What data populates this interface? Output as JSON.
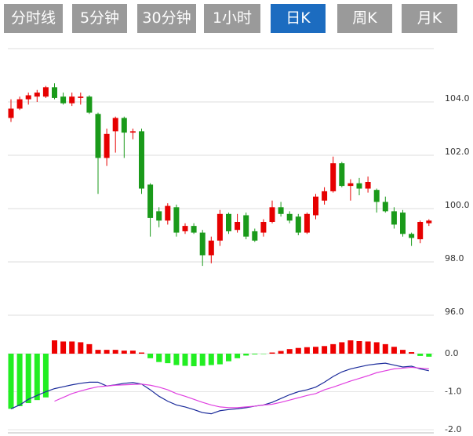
{
  "tabs": [
    "分时线",
    "5分钟",
    "30分钟",
    "1小时",
    "日K",
    "周K",
    "月K"
  ],
  "active_tab": 4,
  "chart_data": [
    {
      "type": "candlestick",
      "up_color": "#e60000",
      "down_color": "#1a9a1a",
      "ylim": [
        96,
        106
      ],
      "yticks": [
        {
          "value": 96,
          "label": "96.0"
        },
        {
          "value": 98,
          "label": "98.0"
        },
        {
          "value": 100,
          "label": "100.0"
        },
        {
          "value": 102,
          "label": "102.0"
        },
        {
          "value": 104,
          "label": "104.0"
        }
      ],
      "open": [
        103.4,
        103.75,
        104.1,
        104.2,
        104.2,
        104.55,
        104.2,
        103.95,
        104.15,
        104.2,
        103.55,
        101.9,
        102.9,
        103.4,
        102.85,
        102.9,
        100.9,
        99.9,
        99.55,
        100.05,
        99.15,
        99.35,
        99.1,
        98.25,
        98.8,
        99.8,
        99.2,
        99.75,
        99.15,
        99.1,
        99.5,
        100.05,
        99.8,
        99.7,
        99.1,
        99.75,
        100.3,
        100.65,
        101.7,
        100.85,
        100.95,
        100.75,
        100.7,
        100.25,
        99.9,
        99.85,
        99.05,
        98.85,
        99.45
      ],
      "high": [
        104.1,
        104.2,
        104.35,
        104.45,
        104.6,
        104.7,
        104.35,
        104.35,
        104.35,
        104.25,
        103.6,
        103.0,
        103.45,
        103.45,
        103.0,
        103.0,
        100.95,
        100.05,
        100.2,
        100.15,
        99.45,
        99.45,
        99.2,
        98.95,
        99.95,
        99.85,
        99.8,
        99.85,
        99.25,
        99.6,
        100.3,
        100.25,
        99.9,
        99.8,
        99.85,
        100.55,
        100.8,
        101.95,
        101.75,
        101.1,
        101.15,
        101.2,
        100.75,
        100.45,
        100.05,
        99.95,
        99.1,
        99.55,
        99.6
      ],
      "low": [
        103.25,
        103.7,
        103.9,
        104.0,
        104.15,
        104.1,
        103.9,
        103.85,
        103.9,
        103.55,
        100.55,
        101.6,
        102.1,
        101.9,
        102.6,
        100.55,
        98.95,
        99.3,
        99.4,
        98.95,
        99.05,
        99.05,
        97.85,
        97.95,
        98.6,
        99.05,
        99.1,
        98.85,
        98.75,
        98.95,
        99.45,
        99.7,
        99.45,
        99.0,
        99.05,
        99.6,
        100.15,
        100.6,
        100.8,
        100.3,
        100.5,
        100.6,
        99.85,
        99.85,
        99.25,
        98.95,
        98.6,
        98.7,
        99.35
      ],
      "close": [
        103.75,
        104.1,
        104.25,
        104.35,
        104.55,
        104.15,
        103.95,
        104.2,
        104.2,
        103.6,
        101.9,
        102.8,
        103.4,
        102.85,
        102.9,
        100.75,
        99.65,
        99.55,
        100.1,
        99.1,
        99.35,
        99.1,
        98.25,
        98.8,
        99.8,
        99.15,
        99.5,
        98.95,
        98.8,
        99.5,
        100.05,
        99.8,
        99.55,
        99.1,
        99.8,
        100.45,
        100.65,
        101.7,
        100.85,
        100.95,
        100.75,
        101.0,
        100.25,
        99.9,
        99.4,
        99.05,
        98.9,
        99.5,
        99.55
      ]
    },
    {
      "type": "macd",
      "ylim": [
        -2,
        1
      ],
      "yticks": [
        {
          "value": -2,
          "label": "-2.0"
        },
        {
          "value": -1,
          "label": "-1.0"
        },
        {
          "value": 0,
          "label": "0.0"
        }
      ],
      "series": [
        {
          "type": "bar",
          "up_color": "#ee0000",
          "down_color": "#22ee22",
          "values": [
            -1.45,
            -1.38,
            -1.3,
            -1.22,
            -1.15,
            0.35,
            0.32,
            0.32,
            0.3,
            0.25,
            0.1,
            0.1,
            0.1,
            0.08,
            0.08,
            0.03,
            -0.12,
            -0.22,
            -0.25,
            -0.3,
            -0.32,
            -0.33,
            -0.32,
            -0.3,
            -0.28,
            -0.2,
            -0.12,
            -0.05,
            -0.02,
            -0.01,
            0.03,
            0.07,
            0.12,
            0.15,
            0.17,
            0.18,
            0.2,
            0.25,
            0.3,
            0.35,
            0.33,
            0.32,
            0.3,
            0.25,
            0.18,
            0.1,
            0.04,
            -0.06,
            -0.08
          ]
        },
        {
          "type": "line",
          "color": "#1a2a9a",
          "values": [
            -1.45,
            -1.35,
            -1.2,
            -1.1,
            -1.0,
            -0.92,
            -0.87,
            -0.82,
            -0.78,
            -0.75,
            -0.75,
            -0.85,
            -0.82,
            -0.78,
            -0.76,
            -0.8,
            -0.95,
            -1.12,
            -1.25,
            -1.35,
            -1.4,
            -1.47,
            -1.55,
            -1.58,
            -1.5,
            -1.47,
            -1.45,
            -1.42,
            -1.38,
            -1.35,
            -1.28,
            -1.18,
            -1.08,
            -1.0,
            -0.95,
            -0.88,
            -0.75,
            -0.6,
            -0.48,
            -0.4,
            -0.35,
            -0.3,
            -0.27,
            -0.25,
            -0.3,
            -0.35,
            -0.33,
            -0.4,
            -0.45
          ]
        },
        {
          "type": "line",
          "color": "#e040e0",
          "values": [
            null,
            null,
            null,
            null,
            null,
            -1.25,
            -1.15,
            -1.05,
            -0.98,
            -0.92,
            -0.87,
            -0.85,
            -0.83,
            -0.82,
            -0.81,
            -0.8,
            -0.83,
            -0.88,
            -0.95,
            -1.05,
            -1.12,
            -1.2,
            -1.28,
            -1.35,
            -1.4,
            -1.42,
            -1.42,
            -1.4,
            -1.38,
            -1.35,
            -1.33,
            -1.28,
            -1.22,
            -1.16,
            -1.1,
            -1.05,
            -0.95,
            -0.88,
            -0.8,
            -0.72,
            -0.65,
            -0.58,
            -0.5,
            -0.45,
            -0.4,
            -0.38,
            -0.36,
            -0.38,
            -0.4
          ]
        }
      ]
    }
  ]
}
